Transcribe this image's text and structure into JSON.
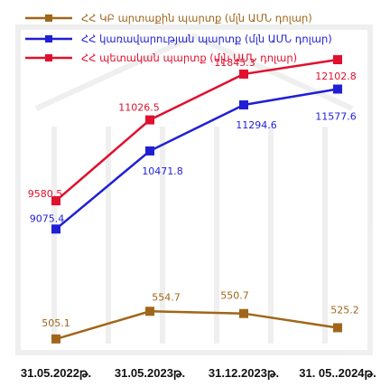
{
  "chart_data": {
    "type": "line",
    "categories": [
      "31.05.2022թ.",
      "31.05.2023թ.",
      "31.12.2023թ.",
      "31. 05..2024թ."
    ],
    "series": [
      {
        "name": "ՀՀ ԿԲ արտաքին պարտք (մլն ԱՄՆ դոլար)",
        "color": "#a0661a",
        "values": [
          505.1,
          554.7,
          550.7,
          525.2
        ],
        "labels": [
          "505.1",
          "554.7",
          "550.7",
          "525.2"
        ]
      },
      {
        "name": "ՀՀ կառավարության պարտք (մլն ԱՄՆ դոլար)",
        "color": "#1f1fd6",
        "values": [
          9075.4,
          10471.8,
          11294.6,
          11577.6
        ],
        "labels": [
          "9075.4",
          "10471.8",
          "11294.6",
          "11577.6"
        ]
      },
      {
        "name": "ՀՀ պետական պարտք (մլն ԱՄՆ դոլար)",
        "color": "#e0102e",
        "values": [
          9580.5,
          11026.5,
          11845.3,
          12102.8
        ],
        "labels": [
          "9580.5",
          "11026.5",
          "11845.3",
          "12102.8"
        ]
      }
    ],
    "legend_position": "top",
    "grid": false,
    "title": "",
    "xlabel": "",
    "ylabel": ""
  }
}
